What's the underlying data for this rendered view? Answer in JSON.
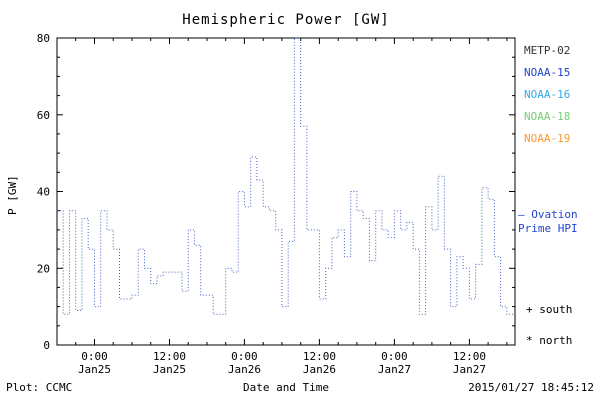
{
  "title": "Hemispheric Power [GW]",
  "axes": {
    "ylabel": "P [GW]",
    "xlabel": "Date and Time"
  },
  "footer": {
    "plot_credit": "Plot: CCMC",
    "timestamp": "2015/01/27 18:45:12"
  },
  "legend": {
    "satellites": [
      {
        "label": "METP-02",
        "color": "#333333"
      },
      {
        "label": "NOAA-15",
        "color": "#2244cc"
      },
      {
        "label": "NOAA-16",
        "color": "#33aaee"
      },
      {
        "label": "NOAA-18",
        "color": "#77cc77"
      },
      {
        "label": "NOAA-19",
        "color": "#ff9933"
      }
    ],
    "ovation": {
      "line1": "– Ovation",
      "line2": "Prime HPI",
      "color": "#2244cc"
    },
    "south_marker": "+ south",
    "north_marker": "* north"
  },
  "chart_data": {
    "type": "line",
    "style": "dotted-step",
    "series_name": "Ovation Prime HPI",
    "line_color": "#4060c0",
    "title": "Hemispheric Power [GW]",
    "xlabel": "Date and Time",
    "ylabel": "P [GW]",
    "ylim": [
      0,
      80
    ],
    "yticks": [
      0,
      20,
      40,
      60,
      80
    ],
    "y_minor_step": 5,
    "x_hours_range": [
      -6,
      67.3
    ],
    "x_minor_step_hours": 3,
    "xticks": [
      {
        "hour": 0,
        "time": "0:00",
        "date": "Jan25"
      },
      {
        "hour": 12,
        "time": "12:00",
        "date": "Jan25"
      },
      {
        "hour": 24,
        "time": "0:00",
        "date": "Jan26"
      },
      {
        "hour": 36,
        "time": "12:00",
        "date": "Jan26"
      },
      {
        "hour": 48,
        "time": "0:00",
        "date": "Jan27"
      },
      {
        "hour": 60,
        "time": "12:00",
        "date": "Jan27"
      }
    ],
    "points_hour_gw": [
      [
        -6,
        35
      ],
      [
        -5,
        8
      ],
      [
        -4,
        35
      ],
      [
        -3,
        9
      ],
      [
        -2,
        33
      ],
      [
        -1,
        25
      ],
      [
        0,
        10
      ],
      [
        1,
        35
      ],
      [
        2,
        30
      ],
      [
        3,
        25
      ],
      [
        4,
        12
      ],
      [
        5,
        12
      ],
      [
        6,
        13
      ],
      [
        7,
        25
      ],
      [
        8,
        20
      ],
      [
        9,
        16
      ],
      [
        10,
        18
      ],
      [
        11,
        19
      ],
      [
        12,
        19
      ],
      [
        13,
        19
      ],
      [
        14,
        14
      ],
      [
        15,
        30
      ],
      [
        16,
        26
      ],
      [
        17,
        13
      ],
      [
        18,
        13
      ],
      [
        19,
        8
      ],
      [
        20,
        8
      ],
      [
        21,
        20
      ],
      [
        22,
        19
      ],
      [
        23,
        40
      ],
      [
        24,
        36
      ],
      [
        25,
        49
      ],
      [
        26,
        43
      ],
      [
        27,
        36
      ],
      [
        28,
        35
      ],
      [
        29,
        30
      ],
      [
        30,
        10
      ],
      [
        31,
        27
      ],
      [
        32,
        80
      ],
      [
        33,
        57
      ],
      [
        34,
        30
      ],
      [
        35,
        30
      ],
      [
        36,
        12
      ],
      [
        37,
        20
      ],
      [
        38,
        28
      ],
      [
        39,
        30
      ],
      [
        40,
        23
      ],
      [
        41,
        40
      ],
      [
        42,
        35
      ],
      [
        43,
        33
      ],
      [
        44,
        22
      ],
      [
        45,
        35
      ],
      [
        46,
        30
      ],
      [
        47,
        28
      ],
      [
        48,
        35
      ],
      [
        49,
        30
      ],
      [
        50,
        32
      ],
      [
        51,
        25
      ],
      [
        52,
        8
      ],
      [
        53,
        36
      ],
      [
        54,
        30
      ],
      [
        55,
        44
      ],
      [
        56,
        25
      ],
      [
        57,
        10
      ],
      [
        58,
        23
      ],
      [
        59,
        20
      ],
      [
        60,
        12
      ],
      [
        61,
        21
      ],
      [
        62,
        41
      ],
      [
        63,
        38
      ],
      [
        64,
        23
      ],
      [
        65,
        10
      ],
      [
        66,
        8
      ],
      [
        67,
        8
      ]
    ]
  }
}
